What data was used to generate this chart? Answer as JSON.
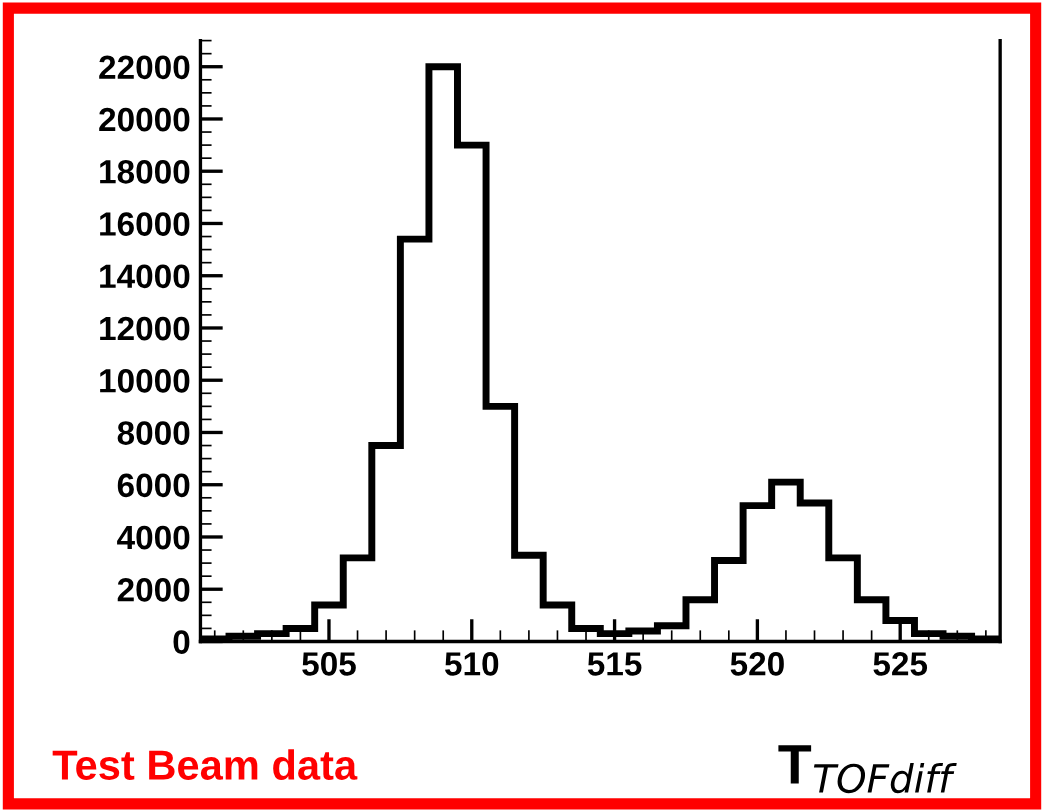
{
  "chart_data": {
    "type": "histogram",
    "bins": [
      500.5,
      501.5,
      502.5,
      503.5,
      504.5,
      505.5,
      506.5,
      507.5,
      508.5,
      509.5,
      510.5,
      511.5,
      512.5,
      513.5,
      514.5,
      515.5,
      516.5,
      517.5,
      518.5,
      519.5,
      520.5,
      521.5,
      522.5,
      523.5,
      524.5,
      525.5,
      526.5,
      527.5,
      528.5
    ],
    "values": [
      100,
      200,
      300,
      500,
      1400,
      3200,
      7500,
      15400,
      22000,
      19000,
      9000,
      3300,
      1400,
      500,
      300,
      400,
      600,
      1600,
      3100,
      5200,
      6100,
      5300,
      3200,
      1600,
      800,
      300,
      200,
      100
    ],
    "color": "#000000",
    "xlim": [
      500.5,
      528.5
    ],
    "xticks": [
      505,
      510,
      515,
      520,
      525
    ],
    "ylim": [
      0,
      23000
    ],
    "yticks": [
      0,
      2000,
      4000,
      6000,
      8000,
      10000,
      12000,
      14000,
      16000,
      18000,
      20000,
      22000
    ],
    "xlabel": "T$_{TOFdiff}$",
    "annotations": [
      "Test Beam data"
    ],
    "grid": false,
    "legend": false
  }
}
